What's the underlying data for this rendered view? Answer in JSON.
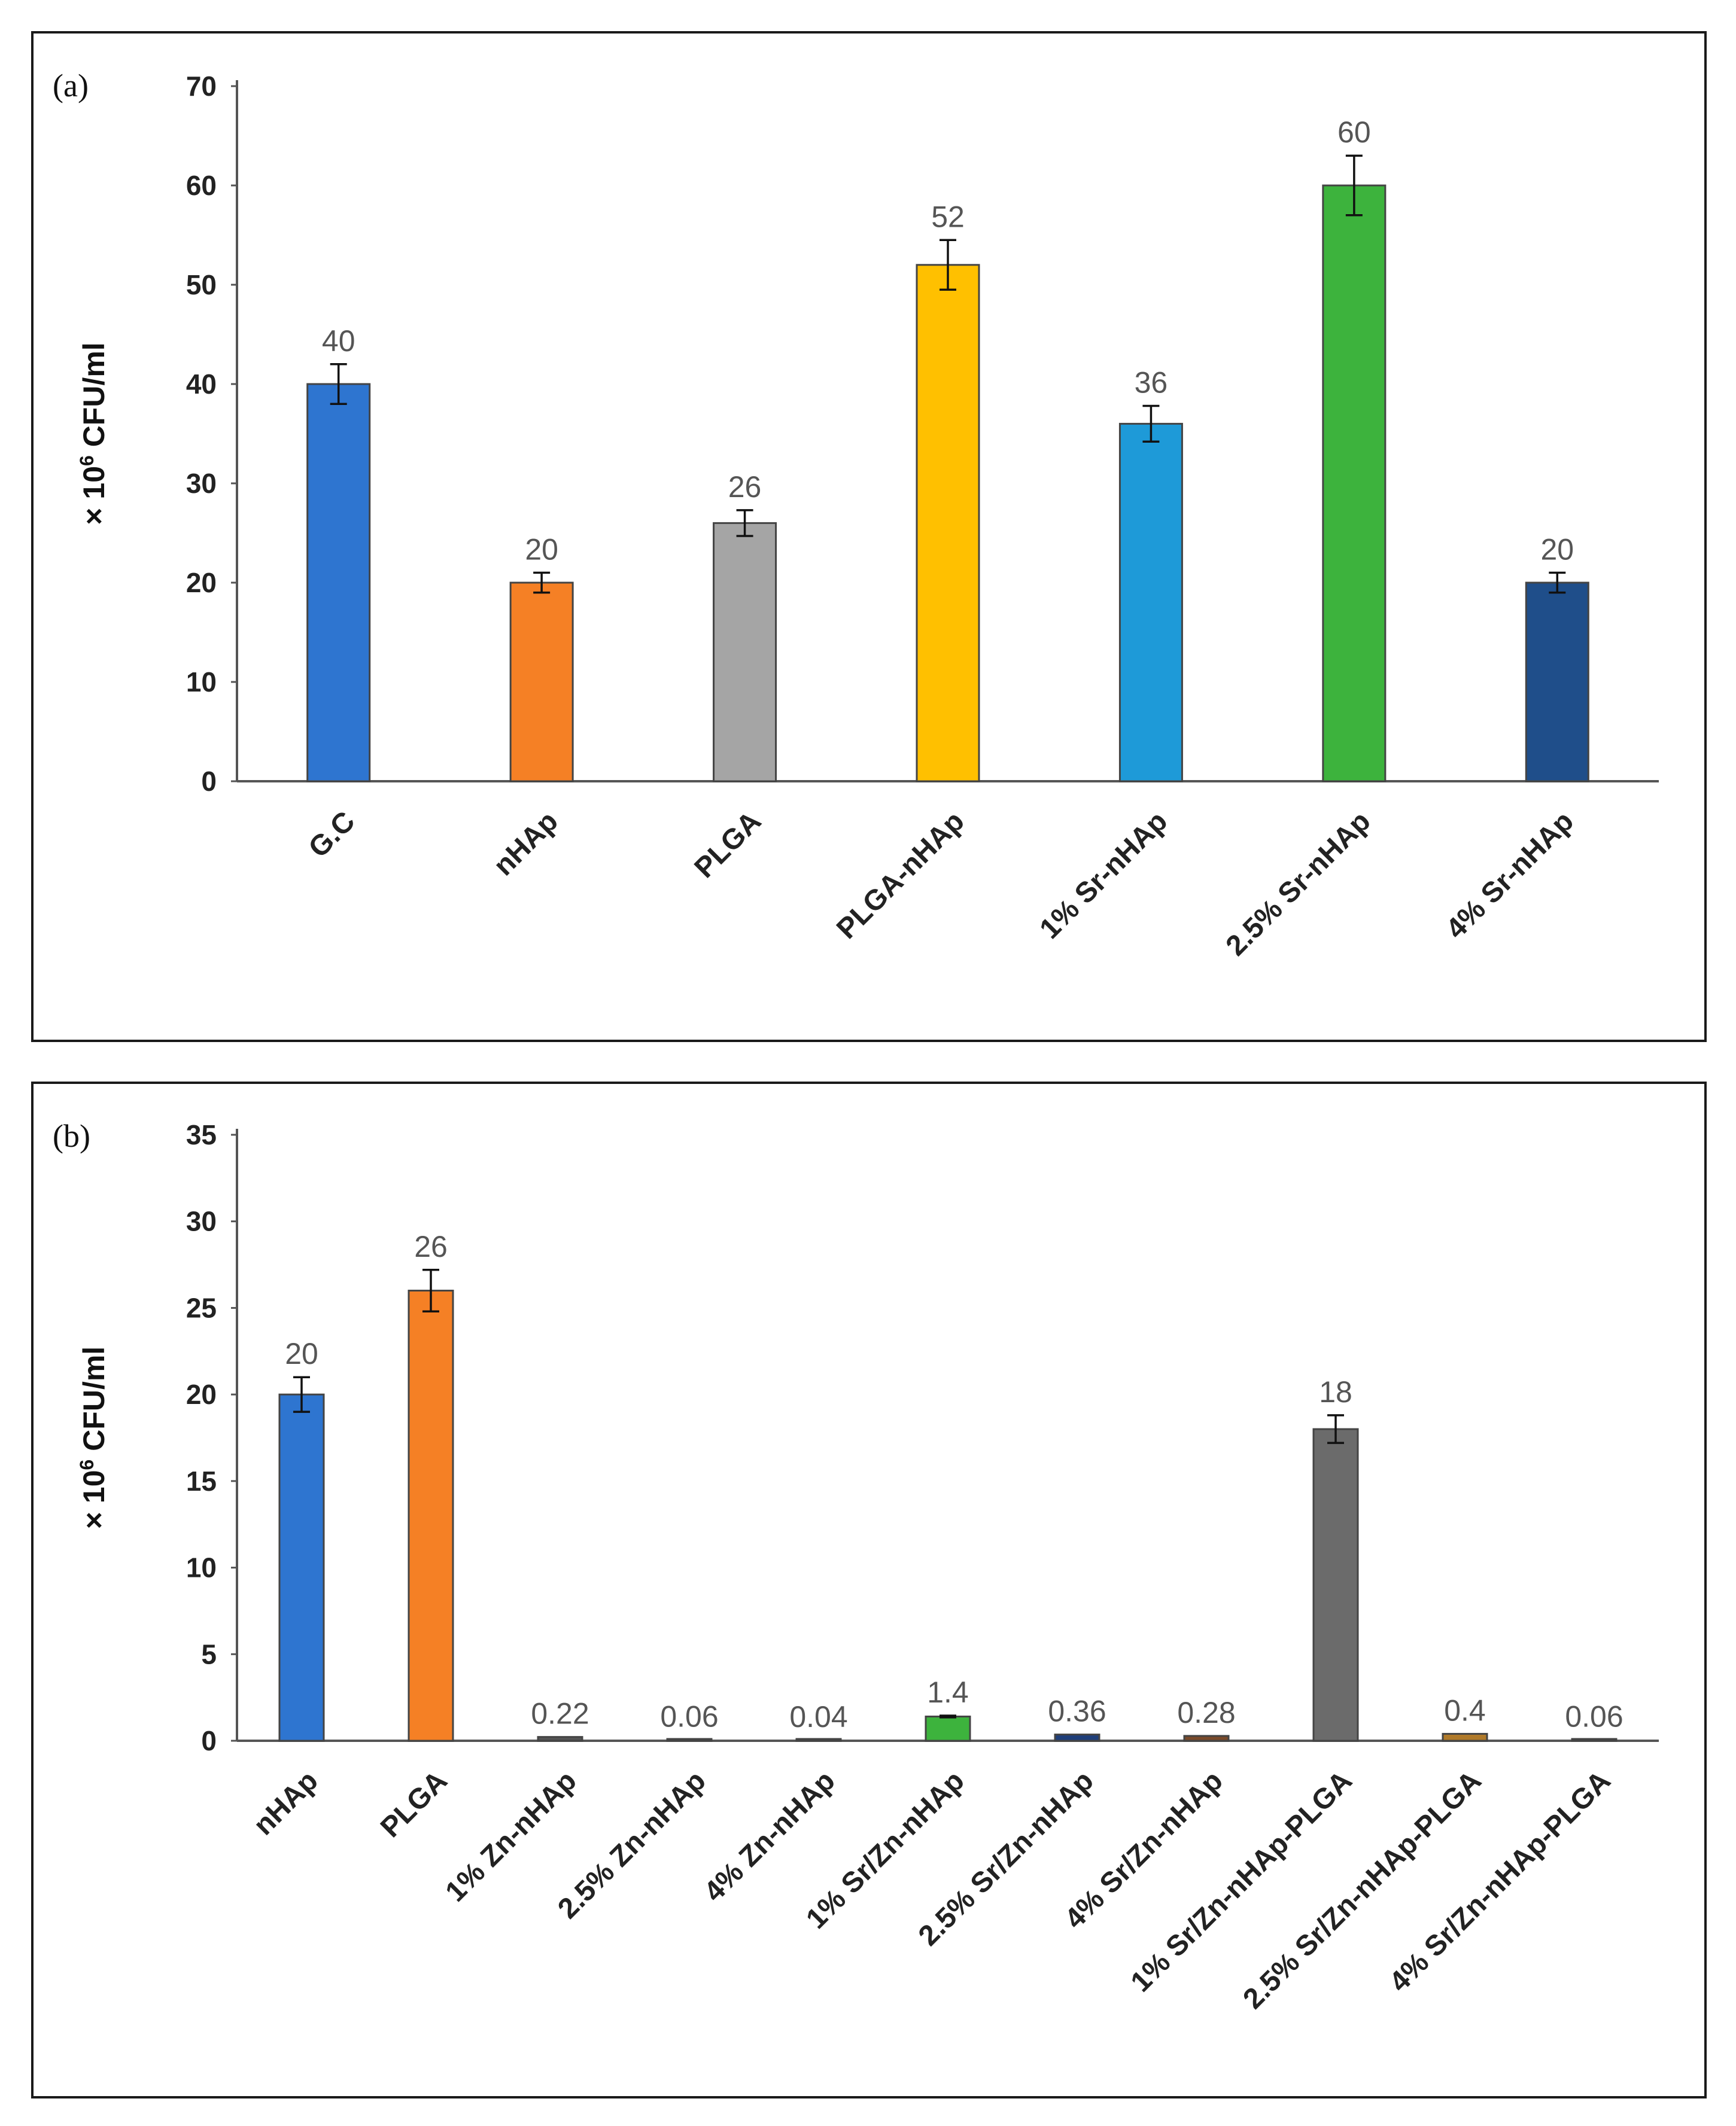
{
  "chart_data": [
    {
      "type": "bar",
      "panel_label": "(a)",
      "ylabel_prefix": "× 10",
      "ylabel_exponent": "6",
      "ylabel_unit": " CFU/ml",
      "ylim": [
        0,
        70
      ],
      "yticks": [
        "0",
        "10",
        "20",
        "30",
        "40",
        "50",
        "60",
        "70"
      ],
      "categories": [
        "G.C",
        "nHAp",
        "PLGA",
        "PLGA-nHAp",
        "1% Sr-nHAp",
        "2.5% Sr-nHAp",
        "4% Sr-nHAp"
      ],
      "values": [
        40,
        20,
        26,
        52,
        36,
        60,
        20
      ],
      "errors": [
        2,
        1,
        1.3,
        2.5,
        1.8,
        3,
        1
      ],
      "data_labels": [
        "40",
        "20",
        "26",
        "52",
        "36",
        "60",
        "20"
      ],
      "colors": [
        "#2E75D0",
        "#F58025",
        "#A5A5A5",
        "#FFC000",
        "#1E9AD8",
        "#3DB33D",
        "#1F4E8A"
      ]
    },
    {
      "type": "bar",
      "panel_label": "(b)",
      "ylabel_prefix": "× 10",
      "ylabel_exponent": "6",
      "ylabel_unit": " CFU/ml",
      "ylim": [
        0,
        35
      ],
      "yticks": [
        "0",
        "5",
        "10",
        "15",
        "20",
        "25",
        "30",
        "35"
      ],
      "categories": [
        "nHAp",
        "PLGA",
        "1% Zn-nHAp",
        "2.5% Zn-nHAp",
        "4% Zn-nHAp",
        "1% Sr/Zn-nHAp",
        "2.5% Sr/Zn-nHAp",
        "4% Sr/Zn-nHAp",
        "1% Sr/Zn-nHAp-PLGA",
        "2.5% Sr/Zn-nHAp-PLGA",
        "4% Sr/Zn-nHAp-PLGA"
      ],
      "values": [
        20,
        26,
        0.22,
        0.06,
        0.04,
        1.4,
        0.36,
        0.28,
        18,
        0.4,
        0.06
      ],
      "errors": [
        1,
        1.2,
        0,
        0,
        0,
        0.05,
        0,
        0,
        0.8,
        0,
        0
      ],
      "data_labels": [
        "20",
        "26",
        "0.22",
        "0.06",
        "0.04",
        "1.4",
        "0.36",
        "0.28",
        "18",
        "0.4",
        "0.06"
      ],
      "colors": [
        "#2E75D0",
        "#F58025",
        "#555555",
        "#8A6A40",
        "#3A5A8A",
        "#3DB33D",
        "#1F3F7A",
        "#7A4A2A",
        "#6B6B6B",
        "#B07A2A",
        "#4A5A7A"
      ]
    }
  ]
}
